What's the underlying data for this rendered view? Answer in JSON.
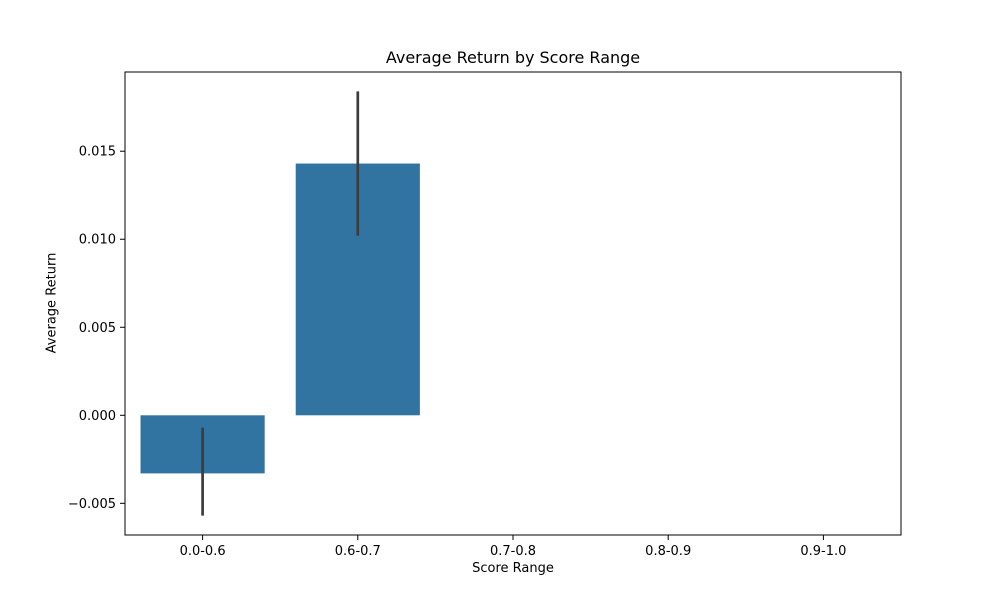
{
  "chart_data": {
    "type": "bar",
    "title": "Average Return by Score Range",
    "xlabel": "Score Range",
    "ylabel": "Average Return",
    "categories": [
      "0.0-0.6",
      "0.6-0.7",
      "0.7-0.8",
      "0.8-0.9",
      "0.9-1.0"
    ],
    "values": [
      -0.0033,
      0.0143,
      null,
      null,
      null
    ],
    "error_bars": [
      {
        "low": -0.0057,
        "high": -0.0007
      },
      {
        "low": 0.0102,
        "high": 0.0184
      },
      null,
      null,
      null
    ],
    "yticks": [
      -0.005,
      0.0,
      0.005,
      0.01,
      0.015
    ],
    "ytick_labels": [
      "−0.005",
      "0.000",
      "0.005",
      "0.010",
      "0.015"
    ],
    "ylim": [
      -0.0068,
      0.0195
    ],
    "grid": false,
    "colors": {
      "bar": "#3274a1",
      "error_bar": "#3c3c3c"
    }
  }
}
